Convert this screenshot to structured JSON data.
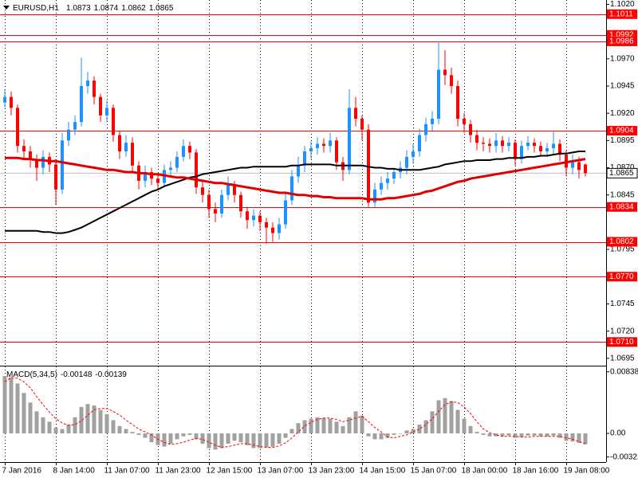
{
  "chart_data": [
    {
      "type": "candlestick",
      "title": "EURUSD,H1",
      "categories": [
        "7 Jan 2016",
        null,
        null,
        null,
        null,
        null,
        null,
        null,
        "8 Jan 14:00",
        null,
        null,
        null,
        null,
        null,
        null,
        null,
        "11 Jan 07:00",
        null,
        null,
        null,
        null,
        null,
        null,
        null,
        "11 Jan 23:00",
        null,
        null,
        null,
        null,
        null,
        null,
        null,
        "12 Jan 15:00",
        null,
        null,
        null,
        null,
        null,
        null,
        null,
        "13 Jan 07:00",
        null,
        null,
        null,
        null,
        null,
        null,
        null,
        "13 Jan 23:00",
        null,
        null,
        null,
        null,
        null,
        null,
        null,
        "14 Jan 15:00",
        null,
        null,
        null,
        null,
        null,
        null,
        null,
        "15 Jan 07:00",
        null,
        null,
        null,
        null,
        null,
        null,
        null,
        "18 Jan 00:00",
        null,
        null,
        null,
        null,
        null,
        null,
        null,
        "18 Jan 16:00",
        null,
        null,
        null,
        null,
        null,
        null,
        null,
        "19 Jan 08:00",
        null,
        null,
        null
      ],
      "open": [
        1.093,
        1.0935,
        1.0925,
        1.089,
        1.0885,
        1.0878,
        1.087,
        1.088,
        1.0873,
        1.085,
        1.0895,
        1.0905,
        1.0912,
        1.0945,
        1.095,
        1.0935,
        1.0918,
        1.0925,
        1.09,
        1.0885,
        1.0893,
        1.0872,
        1.0858,
        1.0866,
        1.086,
        1.0856,
        1.0868,
        1.087,
        1.088,
        1.089,
        1.0884,
        1.0852,
        1.0845,
        1.0832,
        1.0828,
        1.0845,
        1.0855,
        1.0845,
        1.083,
        1.0822,
        1.0826,
        1.082,
        1.0815,
        1.081,
        1.0818,
        1.084,
        1.0862,
        1.0872,
        1.0885,
        1.0888,
        1.0892,
        1.089,
        1.0895,
        1.0875,
        1.0868,
        1.0925,
        1.0915,
        1.0905,
        1.0838,
        1.085,
        1.0856,
        1.086,
        1.0866,
        1.087,
        1.088,
        1.0885,
        1.09,
        1.091,
        1.0915,
        1.096,
        1.0955,
        1.0945,
        1.0915,
        1.091,
        1.09,
        1.0893,
        1.0892,
        1.089,
        1.0895,
        1.089,
        1.0893,
        1.0878,
        1.089,
        1.0893,
        1.089,
        1.0885,
        1.0888,
        1.0892,
        1.0882,
        1.087,
        1.0875,
        1.0873
      ],
      "high": [
        1.0942,
        1.094,
        1.0928,
        1.0896,
        1.089,
        1.0882,
        1.0886,
        1.0884,
        1.0878,
        1.0902,
        1.0912,
        1.0918,
        1.0971,
        1.0958,
        1.0954,
        1.0938,
        1.0932,
        1.0928,
        1.0904,
        1.09,
        1.0898,
        1.0876,
        1.0872,
        1.087,
        1.0864,
        1.0873,
        1.0876,
        1.0885,
        1.0896,
        1.0894,
        1.0887,
        1.0858,
        1.085,
        1.0838,
        1.085,
        1.0862,
        1.0858,
        1.0848,
        1.0834,
        1.0832,
        1.083,
        1.0824,
        1.082,
        1.0824,
        1.0846,
        1.0868,
        1.088,
        1.089,
        1.0894,
        1.0898,
        1.0897,
        1.0902,
        1.0898,
        1.088,
        1.0942,
        1.0935,
        1.0918,
        1.091,
        1.0856,
        1.0862,
        1.0866,
        1.087,
        1.0876,
        1.0886,
        1.0892,
        1.0906,
        1.0916,
        1.0922,
        1.0986,
        1.0978,
        1.0962,
        1.095,
        1.092,
        1.0914,
        1.0905,
        1.0898,
        1.0897,
        1.0902,
        1.0899,
        1.0898,
        1.0896,
        1.0895,
        1.0899,
        1.0897,
        1.0894,
        1.0893,
        1.0903,
        1.0896,
        1.0886,
        1.0882,
        1.088,
        1.0874
      ],
      "low": [
        1.0925,
        1.0918,
        1.0884,
        1.0878,
        1.087,
        1.0858,
        1.0864,
        1.0866,
        1.0836,
        1.0846,
        1.089,
        1.09,
        1.0908,
        1.0938,
        1.0928,
        1.0912,
        1.0912,
        1.0894,
        1.0878,
        1.088,
        1.0865,
        1.085,
        1.0852,
        1.0854,
        1.085,
        1.0852,
        1.0862,
        1.0866,
        1.0876,
        1.0878,
        1.0846,
        1.0838,
        1.0824,
        1.082,
        1.0824,
        1.084,
        1.0838,
        1.0824,
        1.0814,
        1.0816,
        1.0812,
        1.08,
        1.0802,
        1.0804,
        1.0814,
        1.0836,
        1.0856,
        1.0866,
        1.0878,
        1.0882,
        1.0884,
        1.0884,
        1.0868,
        1.0858,
        1.0864,
        1.0908,
        1.0895,
        1.0834,
        1.0834,
        1.0845,
        1.085,
        1.0855,
        1.086,
        1.0864,
        1.0874,
        1.088,
        1.0894,
        1.0904,
        1.091,
        1.0946,
        1.0938,
        1.0908,
        1.0902,
        1.0893,
        1.0886,
        1.0885,
        1.0884,
        1.0884,
        1.0884,
        1.0885,
        1.0872,
        1.0874,
        1.0886,
        1.0884,
        1.088,
        1.088,
        1.0882,
        1.0876,
        1.0862,
        1.0864,
        1.086,
        1.0862
      ],
      "close": [
        1.0935,
        1.0925,
        1.089,
        1.0885,
        1.0878,
        1.087,
        1.088,
        1.0873,
        1.085,
        1.0895,
        1.0905,
        1.0912,
        1.0945,
        1.095,
        1.0935,
        1.0918,
        1.0925,
        1.09,
        1.0885,
        1.0893,
        1.0872,
        1.0858,
        1.0866,
        1.086,
        1.0856,
        1.0868,
        1.087,
        1.088,
        1.089,
        1.0884,
        1.0852,
        1.0845,
        1.0832,
        1.0828,
        1.0845,
        1.0855,
        1.0845,
        1.083,
        1.0822,
        1.0826,
        1.082,
        1.0815,
        1.081,
        1.0818,
        1.084,
        1.0862,
        1.0872,
        1.0885,
        1.0888,
        1.0892,
        1.089,
        1.0895,
        1.0875,
        1.0868,
        1.0925,
        1.0915,
        1.0905,
        1.0838,
        1.085,
        1.0856,
        1.086,
        1.0866,
        1.087,
        1.088,
        1.0885,
        1.09,
        1.091,
        1.0915,
        1.096,
        1.0955,
        1.0945,
        1.0915,
        1.091,
        1.09,
        1.0893,
        1.0892,
        1.089,
        1.0895,
        1.089,
        1.0893,
        1.0878,
        1.089,
        1.0893,
        1.089,
        1.0885,
        1.0888,
        1.0892,
        1.0882,
        1.087,
        1.0875,
        1.0868,
        1.0865
      ],
      "up_color": "#1e90ff",
      "down_color": "#ff0000",
      "moving_averages": [
        {
          "color": "#000000",
          "values": [
            1.0812,
            1.0812,
            1.0812,
            1.0812,
            1.0812,
            1.0812,
            1.0811,
            1.0811,
            1.081,
            1.081,
            1.0811,
            1.0813,
            1.0815,
            1.0818,
            1.0821,
            1.0824,
            1.0827,
            1.083,
            1.0833,
            1.0836,
            1.0839,
            1.0842,
            1.0845,
            1.0848,
            1.085,
            1.0853,
            1.0855,
            1.0857,
            1.0859,
            1.0861,
            1.0862,
            1.0864,
            1.0865,
            1.0866,
            1.0867,
            1.0868,
            1.0869,
            1.087,
            1.087,
            1.0871,
            1.0871,
            1.0871,
            1.0871,
            1.0871,
            1.0871,
            1.0872,
            1.0872,
            1.0873,
            1.0873,
            1.0873,
            1.0873,
            1.0873,
            1.0872,
            1.0872,
            1.0872,
            1.0872,
            1.0872,
            1.0871,
            1.087,
            1.087,
            1.0869,
            1.0869,
            1.0868,
            1.0868,
            1.0868,
            1.0868,
            1.0869,
            1.087,
            1.0871,
            1.0873,
            1.0874,
            1.0875,
            1.0876,
            1.0876,
            1.0877,
            1.0877,
            1.0877,
            1.0878,
            1.0878,
            1.0879,
            1.0879,
            1.0879,
            1.088,
            1.088,
            1.0881,
            1.0881,
            1.0882,
            1.0883,
            1.0883,
            1.0884,
            1.0885,
            1.0885
          ]
        },
        {
          "color": "#e00000",
          "values": [
            1.0879,
            1.0879,
            1.0879,
            1.0878,
            1.0878,
            1.0877,
            1.0877,
            1.0876,
            1.0876,
            1.0875,
            1.0874,
            1.0873,
            1.0872,
            1.0871,
            1.087,
            1.0869,
            1.0868,
            1.0868,
            1.0867,
            1.0866,
            1.0866,
            1.0865,
            1.0865,
            1.0864,
            1.0864,
            1.0863,
            1.0862,
            1.0861,
            1.0861,
            1.086,
            1.0859,
            1.0858,
            1.0857,
            1.0856,
            1.0856,
            1.0855,
            1.0854,
            1.0853,
            1.0852,
            1.0851,
            1.085,
            1.0849,
            1.0848,
            1.0847,
            1.0847,
            1.0846,
            1.0845,
            1.0845,
            1.0844,
            1.0844,
            1.0843,
            1.0843,
            1.0842,
            1.0842,
            1.0842,
            1.0842,
            1.0842,
            1.0841,
            1.0841,
            1.0841,
            1.0842,
            1.0842,
            1.0843,
            1.0844,
            1.0845,
            1.0846,
            1.0848,
            1.0849,
            1.0851,
            1.0853,
            1.0855,
            1.0857,
            1.0858,
            1.086,
            1.0861,
            1.0862,
            1.0863,
            1.0864,
            1.0865,
            1.0866,
            1.0867,
            1.0868,
            1.0869,
            1.087,
            1.0871,
            1.0872,
            1.0873,
            1.0874,
            1.0875,
            1.0876,
            1.0877,
            1.0878
          ]
        }
      ],
      "levels": [
        1.1011,
        1.0992,
        1.0986,
        1.0904,
        1.0834,
        1.0802,
        {
          "value": 1.077,
          "label": "1.0770"
        },
        {
          "value": 1.071,
          "label": "1.0710"
        }
      ],
      "level_color": "#ff0000",
      "ylim": [
        1.0689,
        1.1024
      ],
      "yticks": [
        {
          "value": 1.102,
          "label": "1.1020"
        },
        {
          "value": 1.097,
          "label": "1.0970"
        },
        1.0945,
        {
          "value": 1.092,
          "label": "1.0920"
        },
        1.0895,
        {
          "value": 1.087,
          "label": "1.0870"
        },
        1.0845,
        1.0795,
        1.0745,
        {
          "value": 1.072,
          "label": "1.0720"
        },
        1.0695
      ],
      "grid": true
    },
    {
      "type": "macd",
      "title": "MACD(5,34,5)",
      "series": [
        {
          "color": "#a0a0a0",
          "values": [
            0.0078,
            0.0076,
            0.0068,
            0.0055,
            0.0042,
            0.003,
            0.0022,
            0.0016,
            0.0008,
            0.0006,
            0.0012,
            0.0022,
            0.0036,
            0.004,
            0.0038,
            0.0032,
            0.0026,
            0.0018,
            0.001,
            0.0006,
            0.0002,
            -0.0002,
            -0.0006,
            -0.0012,
            -0.0016,
            -0.0018,
            -0.0014,
            -0.0008,
            -0.0004,
            -0.0002,
            -0.0008,
            -0.0014,
            -0.002,
            -0.0022,
            -0.002,
            -0.0014,
            -0.001,
            -0.0012,
            -0.0016,
            -0.002,
            -0.002,
            -0.0019,
            -0.0018,
            -0.0014,
            -0.0006,
            0.0006,
            0.0014,
            0.0018,
            0.002,
            0.0022,
            0.0021,
            0.002,
            0.0016,
            0.001,
            0.0022,
            0.003,
            0.0024,
            -0.0004,
            -0.0008,
            -0.0008,
            -0.0006,
            -0.0002,
            0.0,
            0.0004,
            0.0006,
            0.0012,
            0.0018,
            0.003,
            0.0045,
            0.0048,
            0.0044,
            0.0032,
            0.002,
            0.001,
            0.0002,
            -0.0002,
            -0.0004,
            -0.0004,
            -0.0004,
            -0.0003,
            -0.0006,
            -0.0005,
            -0.0003,
            -0.0003,
            -0.0004,
            -0.0004,
            -0.0003,
            -0.0006,
            -0.001,
            -0.0011,
            -0.0013,
            -0.00148
          ]
        },
        {
          "color": "#ff0000",
          "dashed": true,
          "values": [
            0.007,
            0.0076,
            0.0075,
            0.007,
            0.0062,
            0.005,
            0.0039,
            0.0029,
            0.002,
            0.0014,
            0.0011,
            0.0012,
            0.0017,
            0.0025,
            0.0032,
            0.0034,
            0.0034,
            0.003,
            0.0025,
            0.0018,
            0.0012,
            0.0006,
            0.0002,
            -0.0002,
            -0.0008,
            -0.0012,
            -0.0015,
            -0.0014,
            -0.0012,
            -0.0009,
            -0.0007,
            -0.0008,
            -0.0012,
            -0.0016,
            -0.0019,
            -0.0018,
            -0.0016,
            -0.0014,
            -0.0014,
            -0.0016,
            -0.0018,
            -0.0019,
            -0.0019,
            -0.0017,
            -0.0013,
            -0.0006,
            0.0002,
            0.001,
            0.0015,
            0.0019,
            0.0021,
            0.0021,
            0.0019,
            0.0016,
            0.0018,
            0.0021,
            0.0023,
            0.0016,
            0.0008,
            0.0002,
            -0.0005,
            -0.0006,
            -0.0004,
            -0.0002,
            0.0002,
            0.0006,
            0.0012,
            0.002,
            0.003,
            0.0039,
            0.0043,
            0.0042,
            0.0036,
            0.0027,
            0.0016,
            0.0006,
            0.0001,
            -0.0002,
            -0.0004,
            -0.0004,
            -0.0004,
            -0.0005,
            -0.0005,
            -0.0004,
            -0.0004,
            -0.0004,
            -0.0004,
            -0.0004,
            -0.0006,
            -0.0008,
            -0.0011,
            -0.00139
          ]
        }
      ],
      "ylim": [
        -0.0039,
        0.009
      ],
      "yticks": [
        0.00838,
        {
          "value": 0,
          "label": "0.00"
        },
        -0.00321
      ]
    }
  ]
}
